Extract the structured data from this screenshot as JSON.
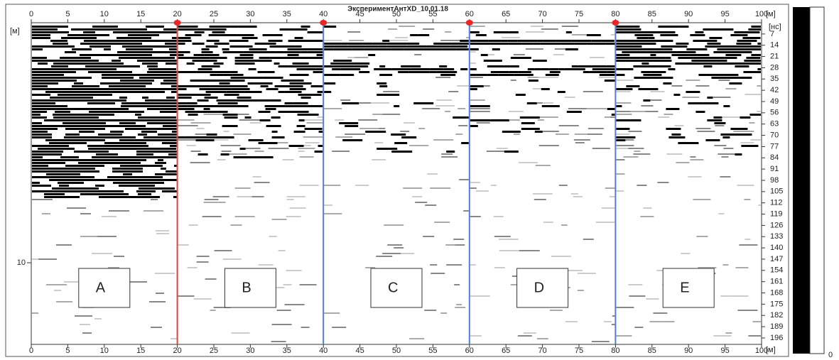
{
  "chart_data": {
    "type": "radargram",
    "title": "ЭкспериментАнтХD_10.01.18",
    "x_unit": "[м]",
    "time_unit": "[нс]",
    "depth_unit": "[м]",
    "xlim": [
      0,
      100
    ],
    "xticks": [
      0,
      5,
      10,
      15,
      20,
      25,
      30,
      35,
      40,
      45,
      50,
      55,
      60,
      65,
      70,
      75,
      80,
      85,
      90,
      95,
      100
    ],
    "ylim": [
      0,
      200
    ],
    "yticks": [
      7,
      14,
      21,
      28,
      35,
      42,
      49,
      56,
      63,
      70,
      77,
      84,
      91,
      98,
      105,
      112,
      119,
      126,
      133,
      140,
      147,
      154,
      161,
      168,
      175,
      182,
      189,
      196
    ],
    "y2lim": [
      0,
      13.4
    ],
    "y2ticks": [
      10
    ],
    "markers": {
      "x": [
        20,
        40,
        60,
        80
      ],
      "colors": [
        "#d8463c",
        "#4f7fcf",
        "#4f7fcf",
        "#4f7fcf"
      ],
      "dot_color": "#e8262a"
    },
    "sections": [
      "A",
      "B",
      "C",
      "D",
      "E"
    ],
    "colorbar_label": "0"
  }
}
